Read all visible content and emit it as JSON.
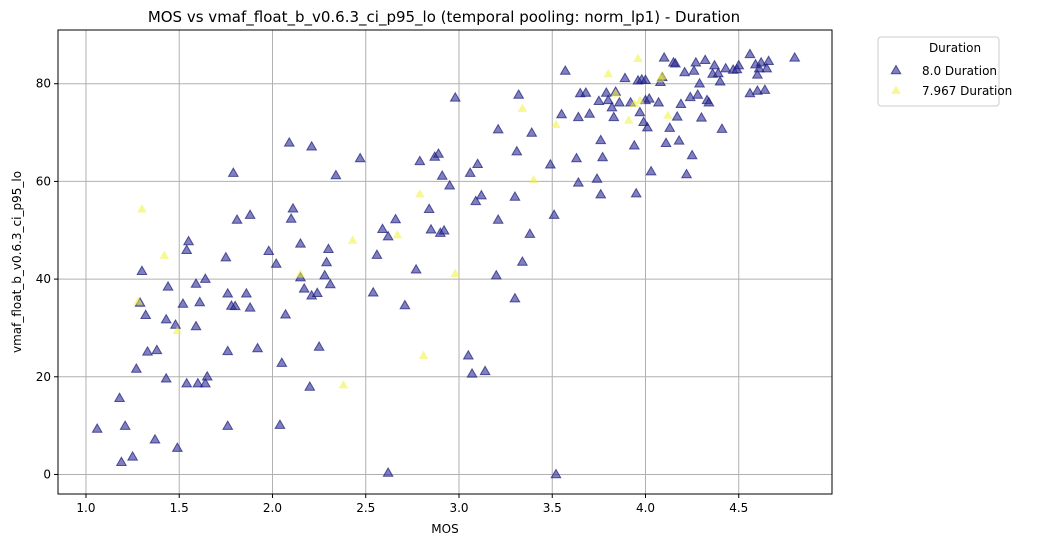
{
  "chart_data": {
    "type": "scatter",
    "title": "MOS vs vmaf_float_b_v0.6.3_ci_p95_lo (temporal pooling: norm_lp1) - Duration",
    "xlabel": "MOS",
    "ylabel": "vmaf_float_b_v0.6.3_ci_p95_lo",
    "xlim": [
      0.85,
      5.0
    ],
    "ylim": [
      -4,
      91
    ],
    "x_ticks": [
      1.0,
      1.5,
      2.0,
      2.5,
      3.0,
      3.5,
      4.0,
      4.5
    ],
    "x_tick_labels": [
      "1.0",
      "1.5",
      "2.0",
      "2.5",
      "3.0",
      "3.5",
      "4.0",
      "4.5"
    ],
    "y_ticks": [
      0,
      20,
      40,
      60,
      80
    ],
    "y_tick_labels": [
      "0",
      "20",
      "40",
      "60",
      "80"
    ],
    "grid": true,
    "marker": "triangle",
    "legend": {
      "title": "Duration",
      "placement": "outside-top-right"
    },
    "series": [
      {
        "name": "8.0 Duration",
        "color": "#2b2b96",
        "points": [
          [
            1.06,
            9.2
          ],
          [
            1.18,
            15.5
          ],
          [
            1.19,
            2.4
          ],
          [
            1.21,
            9.8
          ],
          [
            1.25,
            3.5
          ],
          [
            1.27,
            21.5
          ],
          [
            1.29,
            35.0
          ],
          [
            1.3,
            41.5
          ],
          [
            1.32,
            32.5
          ],
          [
            1.33,
            25.0
          ],
          [
            1.37,
            7.0
          ],
          [
            1.38,
            25.3
          ],
          [
            1.43,
            19.5
          ],
          [
            1.43,
            31.6
          ],
          [
            1.44,
            38.3
          ],
          [
            1.48,
            30.5
          ],
          [
            1.49,
            5.3
          ],
          [
            1.52,
            34.8
          ],
          [
            1.54,
            18.5
          ],
          [
            1.54,
            45.8
          ],
          [
            1.55,
            47.6
          ],
          [
            1.59,
            30.2
          ],
          [
            1.59,
            38.9
          ],
          [
            1.6,
            18.5
          ],
          [
            1.61,
            35.1
          ],
          [
            1.64,
            18.5
          ],
          [
            1.64,
            39.9
          ],
          [
            1.65,
            19.9
          ],
          [
            1.75,
            44.3
          ],
          [
            1.76,
            9.8
          ],
          [
            1.76,
            25.1
          ],
          [
            1.76,
            36.9
          ],
          [
            1.78,
            34.4
          ],
          [
            1.79,
            61.6
          ],
          [
            1.8,
            34.3
          ],
          [
            1.81,
            52.0
          ],
          [
            1.86,
            36.9
          ],
          [
            1.88,
            34.0
          ],
          [
            1.88,
            53.0
          ],
          [
            1.92,
            25.7
          ],
          [
            1.98,
            45.6
          ],
          [
            2.02,
            43.0
          ],
          [
            2.04,
            10.0
          ],
          [
            2.05,
            22.7
          ],
          [
            2.07,
            32.6
          ],
          [
            2.09,
            67.8
          ],
          [
            2.1,
            52.2
          ],
          [
            2.11,
            54.3
          ],
          [
            2.15,
            40.2
          ],
          [
            2.15,
            47.1
          ],
          [
            2.17,
            37.9
          ],
          [
            2.2,
            17.8
          ],
          [
            2.21,
            36.5
          ],
          [
            2.21,
            67.0
          ],
          [
            2.24,
            37.0
          ],
          [
            2.25,
            26.0
          ],
          [
            2.28,
            40.6
          ],
          [
            2.29,
            43.3
          ],
          [
            2.3,
            46.0
          ],
          [
            2.31,
            38.8
          ],
          [
            2.34,
            61.1
          ],
          [
            2.47,
            64.6
          ],
          [
            2.54,
            37.1
          ],
          [
            2.56,
            44.8
          ],
          [
            2.59,
            50.1
          ],
          [
            2.62,
            0.2
          ],
          [
            2.62,
            48.6
          ],
          [
            2.66,
            52.1
          ],
          [
            2.71,
            34.5
          ],
          [
            2.77,
            41.8
          ],
          [
            2.79,
            64.0
          ],
          [
            2.84,
            54.2
          ],
          [
            2.85,
            50.0
          ],
          [
            2.87,
            64.9
          ],
          [
            2.89,
            65.5
          ],
          [
            2.9,
            49.3
          ],
          [
            2.91,
            61.0
          ],
          [
            2.92,
            49.8
          ],
          [
            2.95,
            59.0
          ],
          [
            2.98,
            77.0
          ],
          [
            3.05,
            24.2
          ],
          [
            3.06,
            61.6
          ],
          [
            3.07,
            20.5
          ],
          [
            3.09,
            55.8
          ],
          [
            3.1,
            63.4
          ],
          [
            3.12,
            57.0
          ],
          [
            3.14,
            21.0
          ],
          [
            3.2,
            40.6
          ],
          [
            3.21,
            52.0
          ],
          [
            3.21,
            70.5
          ],
          [
            3.3,
            35.9
          ],
          [
            3.3,
            56.7
          ],
          [
            3.31,
            66.0
          ],
          [
            3.32,
            77.6
          ],
          [
            3.34,
            43.4
          ],
          [
            3.38,
            49.1
          ],
          [
            3.39,
            69.8
          ],
          [
            3.49,
            63.3
          ],
          [
            3.51,
            53.0
          ],
          [
            3.52,
            -0.1
          ],
          [
            3.55,
            73.6
          ],
          [
            3.57,
            82.5
          ],
          [
            3.63,
            64.6
          ],
          [
            3.64,
            59.6
          ],
          [
            3.64,
            73.0
          ],
          [
            3.65,
            77.9
          ],
          [
            3.68,
            78.0
          ],
          [
            3.7,
            73.7
          ],
          [
            3.74,
            60.4
          ],
          [
            3.75,
            76.3
          ],
          [
            3.76,
            57.2
          ],
          [
            3.76,
            68.3
          ],
          [
            3.77,
            64.8
          ],
          [
            3.79,
            78.0
          ],
          [
            3.8,
            76.5
          ],
          [
            3.82,
            75.0
          ],
          [
            3.83,
            73.0
          ],
          [
            3.84,
            78.2
          ],
          [
            3.86,
            76.0
          ],
          [
            3.89,
            81.0
          ],
          [
            3.92,
            76.0
          ],
          [
            3.94,
            67.2
          ],
          [
            3.95,
            57.4
          ],
          [
            3.96,
            80.5
          ],
          [
            3.97,
            74.0
          ],
          [
            3.98,
            80.7
          ],
          [
            3.99,
            72.0
          ],
          [
            4.0,
            76.5
          ],
          [
            4.0,
            80.6
          ],
          [
            4.01,
            70.9
          ],
          [
            4.02,
            76.8
          ],
          [
            4.03,
            61.9
          ],
          [
            4.07,
            76.0
          ],
          [
            4.08,
            80.2
          ],
          [
            4.09,
            81.2
          ],
          [
            4.1,
            85.2
          ],
          [
            4.11,
            67.7
          ],
          [
            4.13,
            70.8
          ],
          [
            4.15,
            84.2
          ],
          [
            4.16,
            84.0
          ],
          [
            4.17,
            73.1
          ],
          [
            4.18,
            68.2
          ],
          [
            4.19,
            75.7
          ],
          [
            4.21,
            82.2
          ],
          [
            4.22,
            61.3
          ],
          [
            4.24,
            77.1
          ],
          [
            4.25,
            65.2
          ],
          [
            4.26,
            82.5
          ],
          [
            4.27,
            84.2
          ],
          [
            4.28,
            77.6
          ],
          [
            4.29,
            79.9
          ],
          [
            4.3,
            72.9
          ],
          [
            4.32,
            84.7
          ],
          [
            4.33,
            76.5
          ],
          [
            4.34,
            76.0
          ],
          [
            4.36,
            81.9
          ],
          [
            4.37,
            83.6
          ],
          [
            4.39,
            82.0
          ],
          [
            4.4,
            80.3
          ],
          [
            4.41,
            70.6
          ],
          [
            4.43,
            83.0
          ],
          [
            4.47,
            82.7
          ],
          [
            4.49,
            82.8
          ],
          [
            4.5,
            83.6
          ],
          [
            4.56,
            85.9
          ],
          [
            4.56,
            77.9
          ],
          [
            4.59,
            83.8
          ],
          [
            4.6,
            78.4
          ],
          [
            4.6,
            81.7
          ],
          [
            4.61,
            83.0
          ],
          [
            4.62,
            84.2
          ],
          [
            4.64,
            78.6
          ],
          [
            4.65,
            83.0
          ],
          [
            4.66,
            84.5
          ],
          [
            4.8,
            85.2
          ]
        ]
      },
      {
        "name": "7.967 Duration",
        "color": "#f0f03c",
        "points": [
          [
            1.28,
            35.3
          ],
          [
            1.3,
            54.2
          ],
          [
            1.42,
            44.7
          ],
          [
            1.49,
            29.3
          ],
          [
            2.15,
            40.9
          ],
          [
            2.38,
            18.2
          ],
          [
            2.43,
            47.8
          ],
          [
            2.67,
            48.9
          ],
          [
            2.79,
            57.3
          ],
          [
            2.81,
            24.2
          ],
          [
            2.98,
            41.0
          ],
          [
            3.34,
            74.8
          ],
          [
            3.4,
            60.2
          ],
          [
            3.52,
            71.5
          ],
          [
            3.8,
            81.9
          ],
          [
            3.84,
            77.9
          ],
          [
            3.91,
            72.4
          ],
          [
            3.94,
            75.8
          ],
          [
            3.96,
            85.0
          ],
          [
            3.97,
            76.4
          ],
          [
            4.08,
            80.9
          ],
          [
            4.09,
            81.5
          ],
          [
            4.12,
            73.4
          ]
        ]
      }
    ]
  }
}
